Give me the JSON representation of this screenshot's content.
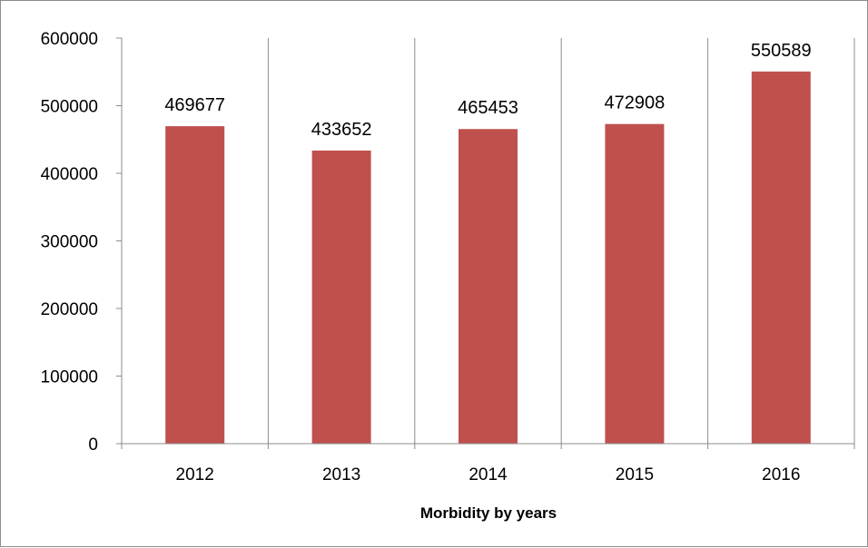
{
  "chart_data": {
    "type": "bar",
    "title": "",
    "xlabel": "Morbidity by years",
    "ylabel": "",
    "categories": [
      "2012",
      "2013",
      "2014",
      "2015",
      "2016"
    ],
    "values": [
      469677,
      433652,
      465453,
      472908,
      550589
    ],
    "data_labels": [
      "469677",
      "433652",
      "465453",
      "472908",
      "550589"
    ],
    "ylim": [
      0,
      600000
    ],
    "yticks": [
      0,
      100000,
      200000,
      300000,
      400000,
      500000,
      600000
    ],
    "ytick_labels": [
      "0",
      "100000",
      "200000",
      "300000",
      "400000",
      "500000",
      "600000"
    ],
    "bar_color": "#C0504D",
    "grid": "vertical",
    "legend": "none"
  }
}
